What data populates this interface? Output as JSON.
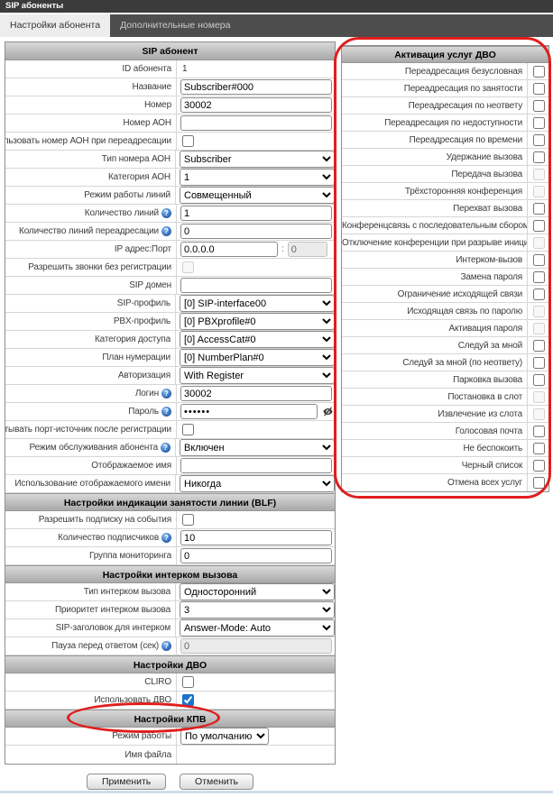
{
  "window_title": "SIP абоненты",
  "tabs": [
    {
      "label": "Настройки абонента",
      "active": true
    },
    {
      "label": "Дополнительные номера",
      "active": false
    }
  ],
  "form": {
    "sections": [
      {
        "header": "SIP абонент",
        "rows": [
          {
            "label": "ID абонента",
            "type": "static",
            "value": "1"
          },
          {
            "label": "Название",
            "type": "text",
            "value": "Subscriber#000"
          },
          {
            "label": "Номер",
            "type": "text",
            "value": "30002"
          },
          {
            "label": "Номер АОН",
            "type": "text",
            "value": ""
          },
          {
            "label": "Использовать номер АОН при переадресации",
            "type": "checkbox",
            "checked": false
          },
          {
            "label": "Тип номера АОН",
            "type": "select",
            "value": "Subscriber"
          },
          {
            "label": "Категория АОН",
            "type": "select",
            "value": "1"
          },
          {
            "label": "Режим работы линий",
            "type": "select",
            "value": "Совмещенный"
          },
          {
            "label": "Количество линий",
            "help": true,
            "type": "text",
            "value": "1"
          },
          {
            "label": "Количество линий переадресации",
            "help": true,
            "type": "text",
            "value": "0"
          },
          {
            "label": "IP адрес:Порт",
            "type": "ip-port",
            "value": "0.0.0.0",
            "port": "0"
          },
          {
            "label": "Разрешить звонки без регистрации",
            "type": "checkbox",
            "checked": false,
            "disabled": true
          },
          {
            "label": "SIP домен",
            "type": "text",
            "value": ""
          },
          {
            "label": "SIP-профиль",
            "type": "select",
            "value": "[0] SIP-interface00"
          },
          {
            "label": "PBX-профиль",
            "type": "select",
            "value": "[0] PBXprofile#0"
          },
          {
            "label": "Категория доступа",
            "type": "select",
            "value": "[0] AccessCat#0"
          },
          {
            "label": "План нумерации",
            "type": "select",
            "value": "[0] NumberPlan#0"
          },
          {
            "label": "Авторизация",
            "type": "select",
            "value": "With Register"
          },
          {
            "label": "Логин",
            "help": true,
            "type": "text",
            "value": "30002"
          },
          {
            "label": "Пароль",
            "help": true,
            "type": "password",
            "value": "••••••"
          },
          {
            "label": "Не учитывать порт-источник после регистрации",
            "type": "checkbox",
            "checked": false
          },
          {
            "label": "Режим обслуживания абонента",
            "help": true,
            "type": "select",
            "value": "Включен"
          },
          {
            "label": "Отображаемое имя",
            "type": "text",
            "value": ""
          },
          {
            "label": "Использование отображаемого имени",
            "type": "select",
            "value": "Никогда"
          }
        ]
      },
      {
        "header": "Настройки индикации занятости линии (BLF)",
        "rows": [
          {
            "label": "Разрешить подписку на события",
            "type": "checkbox",
            "checked": false
          },
          {
            "label": "Количество подписчиков",
            "help": true,
            "type": "text",
            "value": "10"
          },
          {
            "label": "Группа мониторинга",
            "type": "text",
            "value": "0"
          }
        ]
      },
      {
        "header": "Настройки интерком вызова",
        "rows": [
          {
            "label": "Тип интерком вызова",
            "type": "select",
            "value": "Односторонний"
          },
          {
            "label": "Приоритет интерком вызова",
            "type": "select",
            "value": "3"
          },
          {
            "label": "SIP-заголовок для интерком",
            "type": "select",
            "value": "Answer-Mode: Auto"
          },
          {
            "label": "Пауза перед ответом (сек)",
            "help": true,
            "type": "text",
            "value": "0",
            "disabled": true
          }
        ]
      },
      {
        "header": "Настройки ДВО",
        "rows": [
          {
            "label": "CLIRO",
            "type": "checkbox",
            "checked": false
          },
          {
            "label": "Использовать ДВО",
            "type": "checkbox",
            "checked": true,
            "circled": true
          }
        ]
      },
      {
        "header": "Настройки КПВ",
        "rows": [
          {
            "label": "Режим работы",
            "type": "select",
            "value": "По умолчанию",
            "narrow": true
          },
          {
            "label": "Имя файла",
            "type": "static",
            "value": ""
          }
        ]
      }
    ]
  },
  "services_panel": {
    "header": "Активация услуг ДВО",
    "items": [
      {
        "label": "Переадресация безусловная",
        "checked": false,
        "disabled": false
      },
      {
        "label": "Переадресация по занятости",
        "checked": false,
        "disabled": false
      },
      {
        "label": "Переадресация по неответу",
        "checked": false,
        "disabled": false
      },
      {
        "label": "Переадресация по недоступности",
        "checked": false,
        "disabled": false
      },
      {
        "label": "Переадресация по времени",
        "checked": false,
        "disabled": false
      },
      {
        "label": "Удержание вызова",
        "checked": false,
        "disabled": false
      },
      {
        "label": "Передача вызова",
        "checked": false,
        "disabled": true
      },
      {
        "label": "Трёхсторонняя конференция",
        "checked": false,
        "disabled": true
      },
      {
        "label": "Перехват вызова",
        "checked": false,
        "disabled": false
      },
      {
        "label": "Конференцсвязь с последовательным сбором",
        "checked": false,
        "disabled": false
      },
      {
        "label": "Отключение конференции при разрыве инициатора",
        "checked": false,
        "disabled": true
      },
      {
        "label": "Интерком-вызов",
        "checked": false,
        "disabled": false
      },
      {
        "label": "Замена пароля",
        "checked": false,
        "disabled": false
      },
      {
        "label": "Ограничение исходящей связи",
        "checked": false,
        "disabled": false
      },
      {
        "label": "Исходящая связь по паролю",
        "checked": false,
        "disabled": true
      },
      {
        "label": "Активация пароля",
        "checked": false,
        "disabled": true
      },
      {
        "label": "Следуй за мной",
        "checked": false,
        "disabled": false
      },
      {
        "label": "Следуй за мной (по неответу)",
        "checked": false,
        "disabled": false
      },
      {
        "label": "Парковка вызова",
        "checked": false,
        "disabled": false
      },
      {
        "label": "Постановка в слот",
        "checked": false,
        "disabled": true
      },
      {
        "label": "Извлечение из слота",
        "checked": false,
        "disabled": true
      },
      {
        "label": "Голосовая почта",
        "checked": false,
        "disabled": false
      },
      {
        "label": "Не беспокоить",
        "checked": false,
        "disabled": false
      },
      {
        "label": "Черный список",
        "checked": false,
        "disabled": false
      },
      {
        "label": "Отмена всех услуг",
        "checked": false,
        "disabled": false
      }
    ]
  },
  "buttons": {
    "apply": "Применить",
    "cancel": "Отменить"
  },
  "ip_separator": ":",
  "icons": {
    "help": "?",
    "password_eye": "eye-slash-icon"
  },
  "colors": {
    "annotation_red": "#e01e1e",
    "titlebar_bg": "#3b3b3b",
    "tabbar_bg": "#4d4d4d",
    "active_tab_bg": "#ededed",
    "section_header_bg": "#b8b8b8",
    "checked_checkbox": "#1873cc"
  }
}
